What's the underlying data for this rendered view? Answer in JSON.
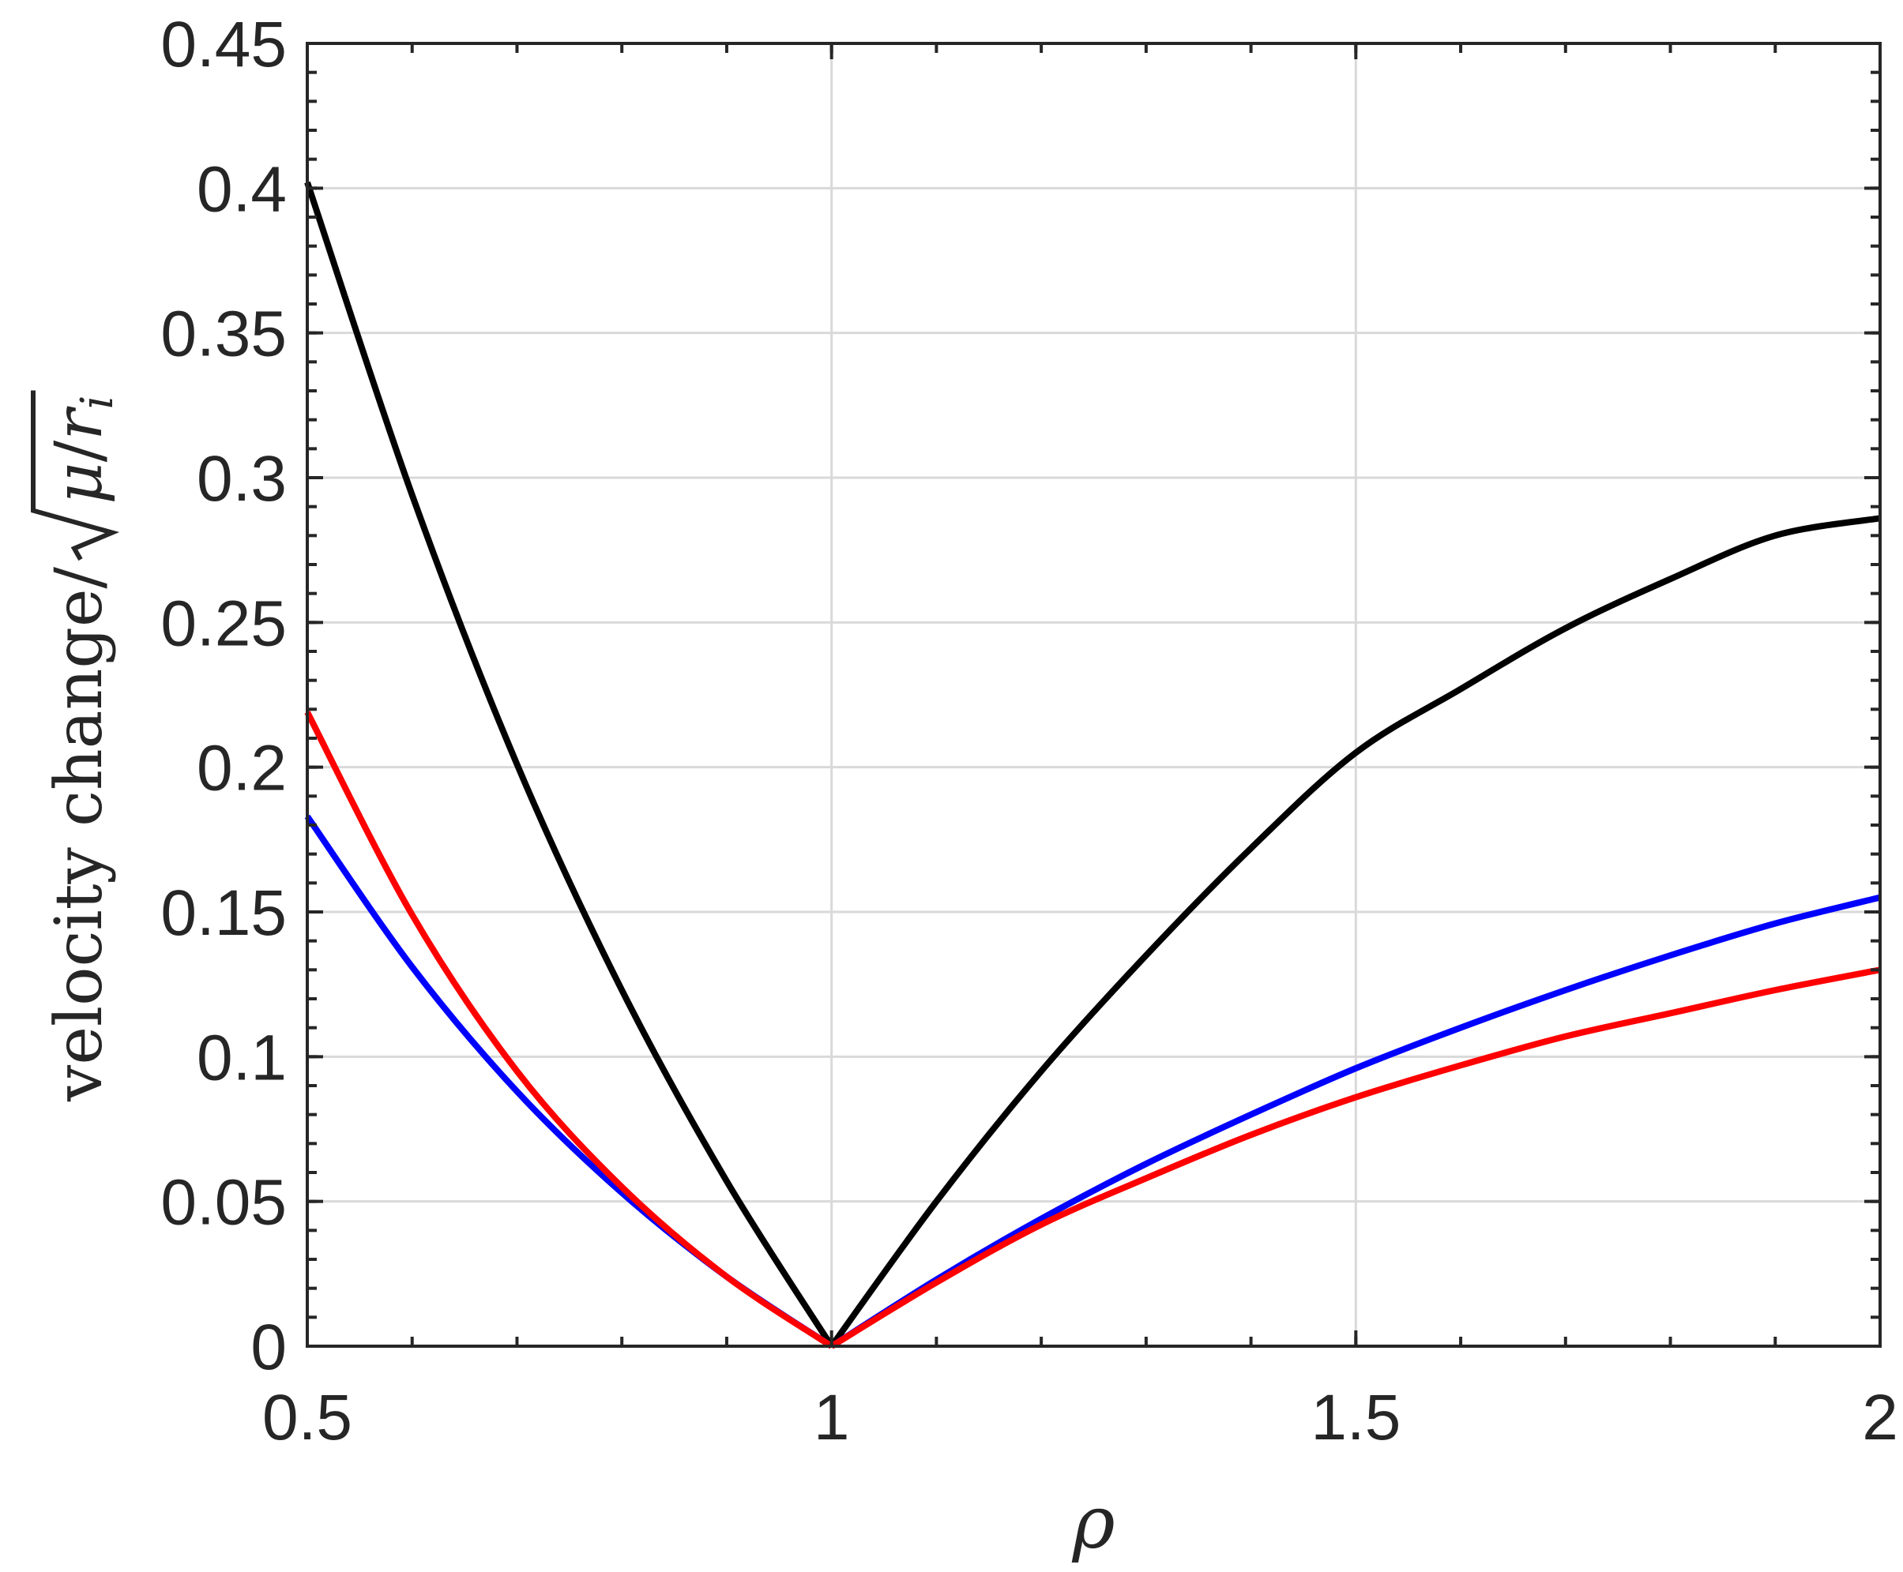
{
  "chart_data": {
    "type": "line",
    "title": "",
    "xlabel": "ρ",
    "ylabel": {
      "prefix": "velocity change/",
      "radicand_mu": "μ",
      "radicand_slash": "/",
      "radicand_r": "r",
      "radicand_sub": "i"
    },
    "xlim": [
      0.5,
      2
    ],
    "ylim": [
      0,
      0.45
    ],
    "xticks": [
      0.5,
      1,
      1.5,
      2
    ],
    "xtick_labels": [
      "0.5",
      "1",
      "1.5",
      "2"
    ],
    "yticks": [
      0,
      0.05,
      0.1,
      0.15,
      0.2,
      0.25,
      0.3,
      0.35,
      0.4,
      0.45
    ],
    "ytick_labels": [
      "0",
      "0.05",
      "0.1",
      "0.15",
      "0.2",
      "0.25",
      "0.3",
      "0.35",
      "0.4",
      "0.45"
    ],
    "grid": true,
    "legend": "none",
    "series": [
      {
        "color": "#000000",
        "x": [
          0.5,
          0.6,
          0.7,
          0.8,
          0.9,
          1.0,
          1.1,
          1.2,
          1.3,
          1.4,
          1.5,
          1.6,
          1.7,
          1.8,
          1.9,
          2.0
        ],
        "y": [
          0.402,
          0.294,
          0.201,
          0.123,
          0.057,
          0.0,
          0.05,
          0.095,
          0.135,
          0.172,
          0.205,
          0.227,
          0.248,
          0.265,
          0.28,
          0.286
        ]
      },
      {
        "color": "#0000ff",
        "x": [
          0.5,
          0.6,
          0.7,
          0.8,
          0.9,
          1.0,
          1.1,
          1.2,
          1.3,
          1.4,
          1.5,
          1.6,
          1.7,
          1.8,
          1.9,
          2.0
        ],
        "y": [
          0.183,
          0.131,
          0.088,
          0.053,
          0.024,
          0.0,
          0.023,
          0.044,
          0.063,
          0.08,
          0.096,
          0.11,
          0.123,
          0.135,
          0.146,
          0.155
        ]
      },
      {
        "color": "#ff0000",
        "x": [
          0.5,
          0.6,
          0.7,
          0.8,
          0.9,
          1.0,
          1.1,
          1.2,
          1.3,
          1.4,
          1.5,
          1.6,
          1.7,
          1.8,
          1.9,
          2.0
        ],
        "y": [
          0.219,
          0.149,
          0.095,
          0.055,
          0.024,
          0.0,
          0.022,
          0.042,
          0.058,
          0.073,
          0.086,
          0.097,
          0.107,
          0.115,
          0.123,
          0.13
        ]
      }
    ]
  }
}
